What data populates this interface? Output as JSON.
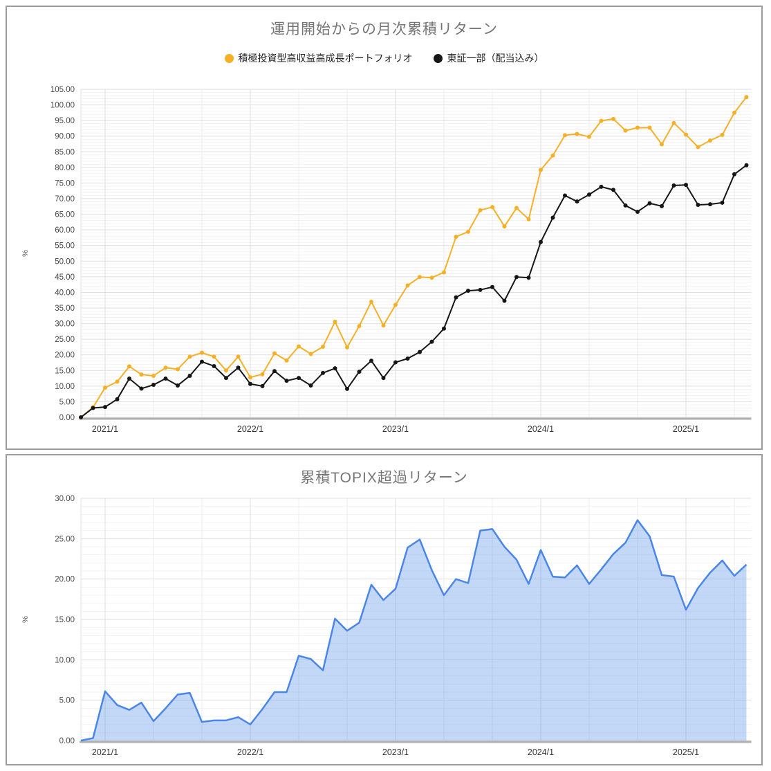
{
  "chart_data": [
    {
      "type": "line",
      "title": "運用開始からの月次累積リターン",
      "ylabel": "%",
      "ylim": [
        0,
        105
      ],
      "ytick_step": 5,
      "minor_grid_step": 1,
      "grid": true,
      "legend_position": "top",
      "x_tick_labels": [
        "2021/1",
        "2022/1",
        "2023/1",
        "2024/1",
        "2025/1"
      ],
      "months": [
        "2020/11",
        "2020/12",
        "2021/1",
        "2021/2",
        "2021/3",
        "2021/4",
        "2021/5",
        "2021/6",
        "2021/7",
        "2021/8",
        "2021/9",
        "2021/10",
        "2021/11",
        "2021/12",
        "2022/1",
        "2022/2",
        "2022/3",
        "2022/4",
        "2022/5",
        "2022/6",
        "2022/7",
        "2022/8",
        "2022/9",
        "2022/10",
        "2022/11",
        "2022/12",
        "2023/1",
        "2023/2",
        "2023/3",
        "2023/4",
        "2023/5",
        "2023/6",
        "2023/7",
        "2023/8",
        "2023/9",
        "2023/10",
        "2023/11",
        "2023/12",
        "2024/1",
        "2024/2",
        "2024/3",
        "2024/4",
        "2024/5",
        "2024/6",
        "2024/7",
        "2024/8",
        "2024/9",
        "2024/10",
        "2024/11",
        "2024/12",
        "2025/1",
        "2025/2",
        "2025/3",
        "2025/4",
        "2025/5",
        "2025/6"
      ],
      "series": [
        {
          "name": "積極投資型高収益高成長ポートフォリオ",
          "color": "#F6B026",
          "markers": true,
          "values": [
            0,
            3.2,
            9.5,
            11.4,
            16.3,
            13.7,
            13.3,
            15.9,
            15.4,
            19.4,
            20.7,
            19.4,
            15.0,
            19.4,
            12.8,
            13.8,
            20.5,
            18.2,
            22.7,
            20.3,
            22.6,
            30.6,
            22.4,
            29.2,
            37.0,
            29.4,
            36.0,
            42.2,
            44.9,
            44.7,
            46.4,
            57.8,
            59.4,
            66.3,
            67.3,
            61.1,
            67.0,
            63.4,
            79.2,
            83.8,
            90.3,
            90.7,
            89.8,
            94.9,
            95.5,
            91.8,
            92.7,
            92.7,
            87.4,
            94.2,
            90.5,
            86.5,
            88.6,
            90.4,
            97.5,
            102.5
          ]
        },
        {
          "name": "東証一部（配当込み）",
          "color": "#161616",
          "markers": true,
          "values": [
            0,
            3.0,
            3.3,
            5.8,
            12.4,
            9.2,
            10.4,
            12.4,
            10.2,
            13.3,
            17.8,
            16.4,
            12.6,
            15.9,
            10.7,
            10.0,
            14.8,
            11.7,
            12.6,
            10.2,
            14.2,
            15.7,
            9.1,
            14.6,
            18.1,
            12.6,
            17.6,
            18.8,
            20.9,
            24.2,
            28.4,
            38.4,
            40.5,
            40.8,
            41.7,
            37.3,
            44.9,
            44.7,
            56.1,
            63.9,
            71.0,
            69.1,
            71.3,
            73.8,
            72.8,
            67.8,
            65.8,
            68.5,
            67.6,
            74.2,
            74.4,
            68.0,
            68.2,
            68.7,
            77.8,
            80.7
          ]
        }
      ]
    },
    {
      "type": "area",
      "title": "累積TOPIX超過リターン",
      "ylabel": "%",
      "ylim": [
        0,
        30
      ],
      "ytick_step": 5,
      "minor_grid_step": 1,
      "grid": true,
      "legend_position": "none",
      "x_tick_labels": [
        "2021/1",
        "2022/1",
        "2023/1",
        "2024/1",
        "2025/1"
      ],
      "months": [
        "2020/11",
        "2020/12",
        "2021/1",
        "2021/2",
        "2021/3",
        "2021/4",
        "2021/5",
        "2021/6",
        "2021/7",
        "2021/8",
        "2021/9",
        "2021/10",
        "2021/11",
        "2021/12",
        "2022/1",
        "2022/2",
        "2022/3",
        "2022/4",
        "2022/5",
        "2022/6",
        "2022/7",
        "2022/8",
        "2022/9",
        "2022/10",
        "2022/11",
        "2022/12",
        "2023/1",
        "2023/2",
        "2023/3",
        "2023/4",
        "2023/5",
        "2023/6",
        "2023/7",
        "2023/8",
        "2023/9",
        "2023/10",
        "2023/11",
        "2023/12",
        "2024/1",
        "2024/2",
        "2024/3",
        "2024/4",
        "2024/5",
        "2024/6",
        "2024/7",
        "2024/8",
        "2024/9",
        "2024/10",
        "2024/11",
        "2024/12",
        "2025/1",
        "2025/2",
        "2025/3",
        "2025/4",
        "2025/5",
        "2025/6"
      ],
      "series": [
        {
          "name": "累積TOPIX超過リターン",
          "color": "#4A86E8",
          "fill": "rgba(74,134,232,0.33)",
          "markers": false,
          "values": [
            0,
            0.3,
            6.1,
            4.4,
            3.8,
            4.7,
            2.4,
            4.0,
            5.7,
            5.9,
            2.3,
            2.5,
            2.5,
            2.9,
            2.0,
            3.9,
            6.0,
            6.0,
            10.5,
            10.1,
            8.7,
            15.1,
            13.6,
            14.6,
            19.3,
            17.4,
            18.8,
            23.9,
            24.9,
            21.1,
            18.0,
            20.0,
            19.5,
            26.0,
            26.2,
            24.0,
            22.4,
            19.4,
            23.6,
            20.3,
            20.2,
            21.7,
            19.4,
            21.2,
            23.1,
            24.5,
            27.3,
            25.3,
            20.5,
            20.3,
            16.2,
            18.9,
            20.8,
            22.3,
            20.4,
            21.8
          ]
        }
      ]
    }
  ]
}
